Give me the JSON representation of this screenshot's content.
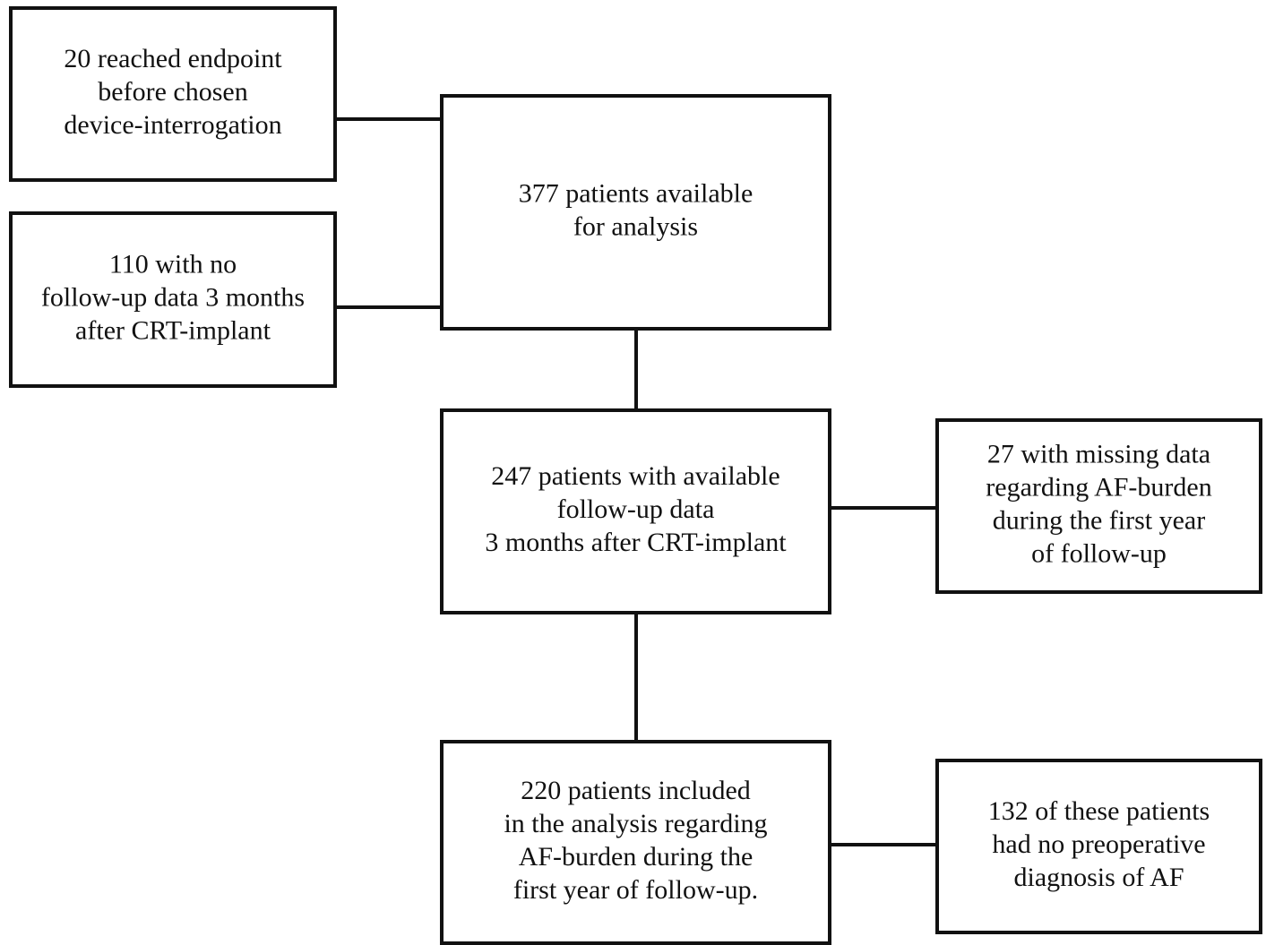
{
  "nodes": [
    {
      "id": "excluded-endpoint",
      "lines": [
        "20 reached endpoint",
        "before chosen",
        "device-interrogation"
      ]
    },
    {
      "id": "excluded-no-followup",
      "lines": [
        "110 with no",
        "follow-up data 3 months",
        "after CRT-implant"
      ]
    },
    {
      "id": "available",
      "lines": [
        "377 patients available",
        "for analysis"
      ]
    },
    {
      "id": "followup",
      "lines": [
        "247 patients with available",
        "follow-up data",
        "3 months after CRT-implant"
      ]
    },
    {
      "id": "excluded-missing",
      "lines": [
        "27 with missing data",
        "regarding AF-burden",
        "during the first year",
        "of follow-up"
      ]
    },
    {
      "id": "included",
      "lines": [
        "220 patients included",
        "in the analysis regarding",
        "AF-burden during the",
        "first year of follow-up."
      ]
    },
    {
      "id": "no-preop",
      "lines": [
        "132 of these patients",
        "had no preoperative",
        "diagnosis of AF"
      ]
    }
  ]
}
